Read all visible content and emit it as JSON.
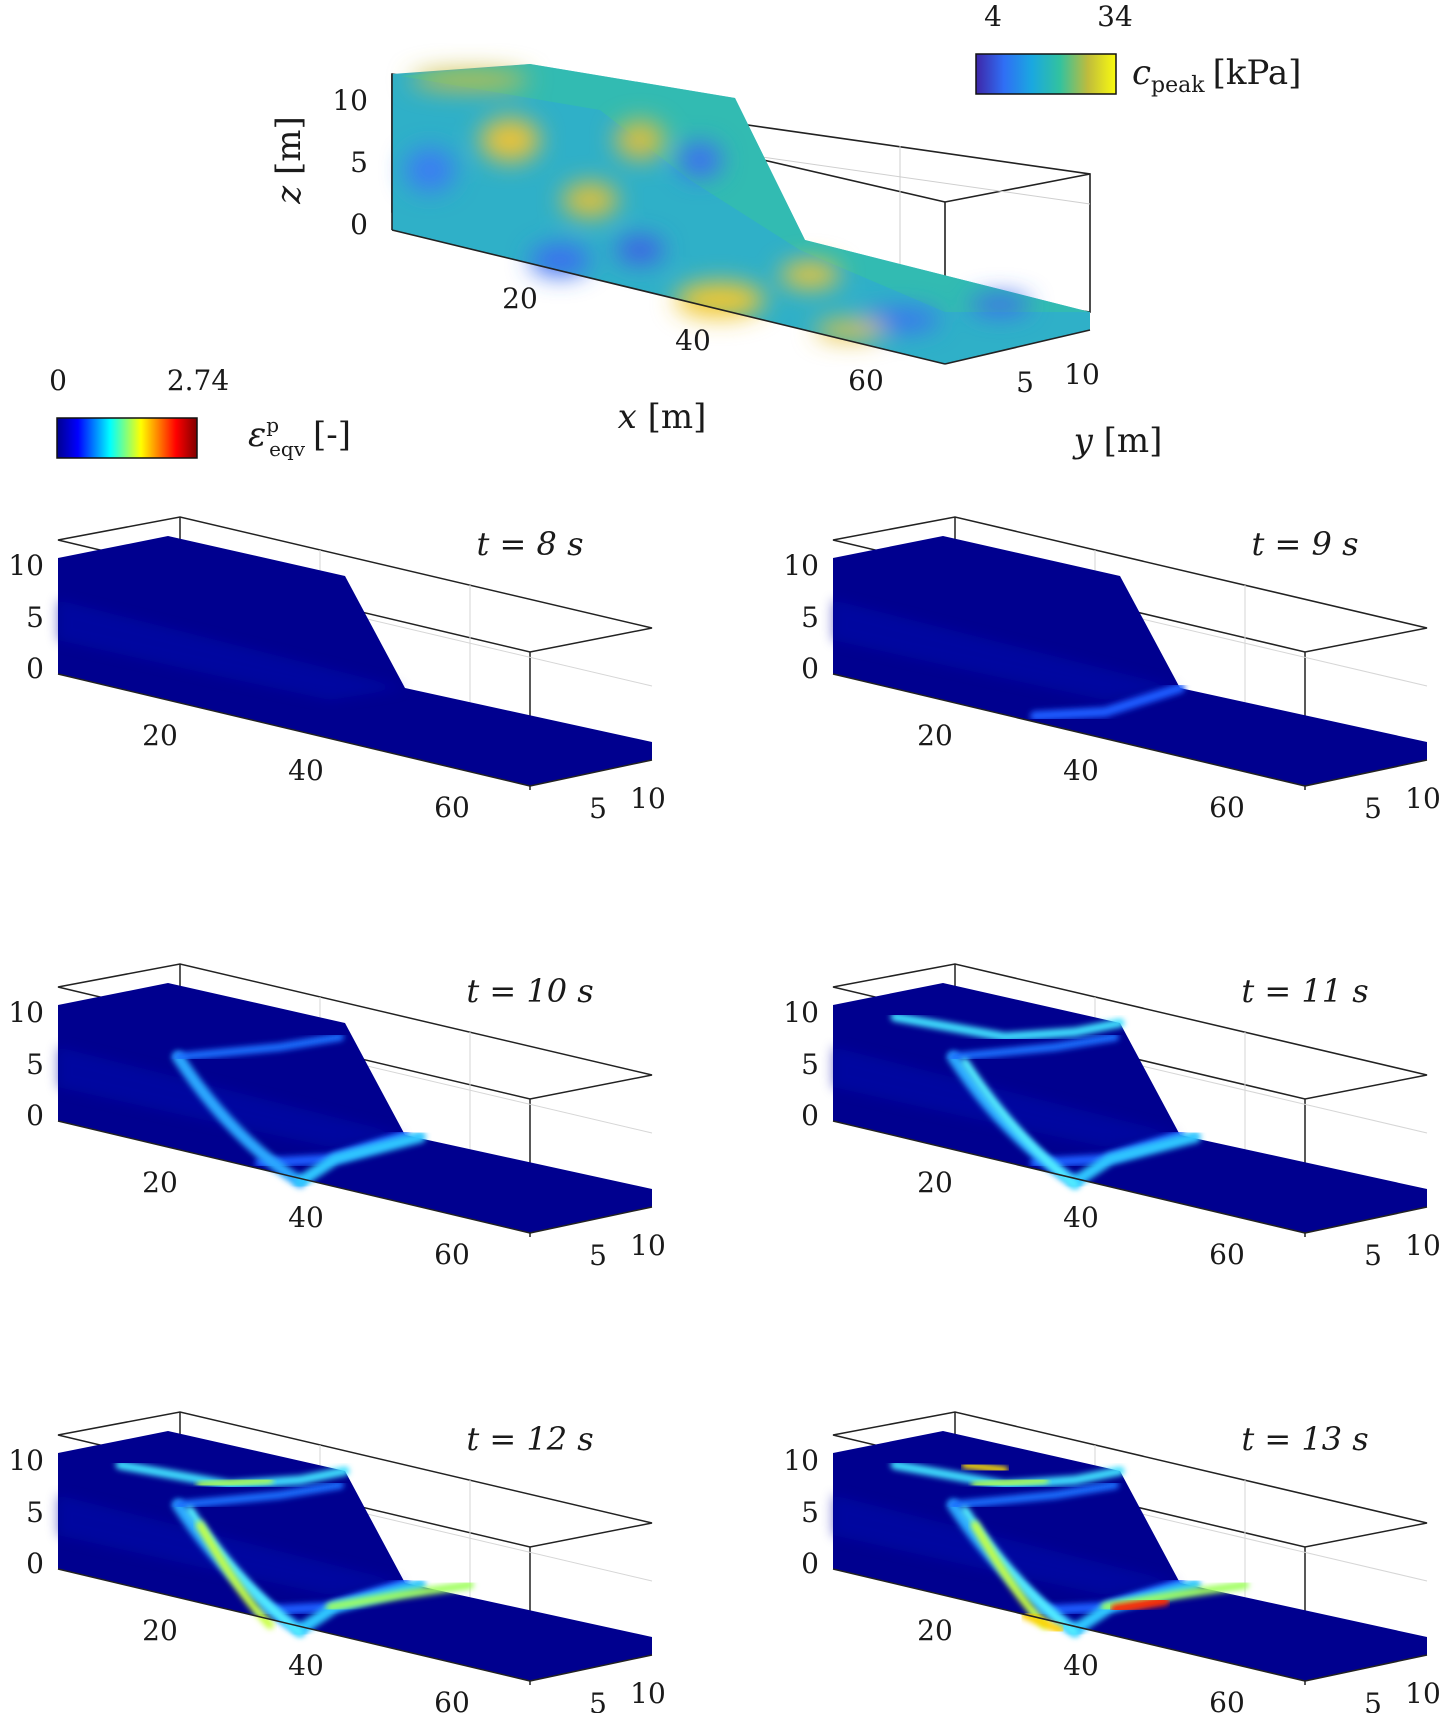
{
  "top_panel": {
    "colorbar": {
      "min": "4",
      "max": "34",
      "label_symbol": "c",
      "label_sub": "peak",
      "label_unit": "[kPa]"
    },
    "axes": {
      "z_label": "z",
      "z_unit": "[m]",
      "x_label": "x",
      "x_unit": "[m]",
      "y_label": "y",
      "y_unit": "[m]",
      "z_ticks": [
        "10",
        "5",
        "0"
      ],
      "x_ticks": [
        "20",
        "40",
        "60"
      ],
      "y_ticks": [
        "5",
        "10"
      ]
    }
  },
  "strain_colorbar": {
    "min": "0",
    "max": "2.74",
    "label_symbol": "ε",
    "label_sup": "p",
    "label_sub": "eqv",
    "label_unit": "[-]"
  },
  "panels": [
    {
      "title": "t = 8 s",
      "time": 8,
      "z_ticks": [
        "10",
        "5",
        "0"
      ],
      "x_ticks": [
        "20",
        "40",
        "60"
      ],
      "y_ticks": [
        "5",
        "10"
      ]
    },
    {
      "title": "t = 9 s",
      "time": 9,
      "z_ticks": [
        "10",
        "5",
        "0"
      ],
      "x_ticks": [
        "20",
        "40",
        "60"
      ],
      "y_ticks": [
        "5",
        "10"
      ]
    },
    {
      "title": "t = 10 s",
      "time": 10,
      "z_ticks": [
        "10",
        "5",
        "0"
      ],
      "x_ticks": [
        "20",
        "40",
        "60"
      ],
      "y_ticks": [
        "5",
        "10"
      ]
    },
    {
      "title": "t = 11 s",
      "time": 11,
      "z_ticks": [
        "10",
        "5",
        "0"
      ],
      "x_ticks": [
        "20",
        "40",
        "60"
      ],
      "y_ticks": [
        "5",
        "10"
      ]
    },
    {
      "title": "t = 12 s",
      "time": 12,
      "z_ticks": [
        "10",
        "5",
        "0"
      ],
      "x_ticks": [
        "20",
        "40",
        "60"
      ],
      "y_ticks": [
        "5",
        "10"
      ]
    },
    {
      "title": "t = 13 s",
      "time": 13,
      "z_ticks": [
        "10",
        "5",
        "0"
      ],
      "x_ticks": [
        "20",
        "40",
        "60"
      ],
      "y_ticks": [
        "5",
        "10"
      ]
    }
  ],
  "colors": {
    "parula_low": "#3b3fcf",
    "parula_mid": "#1fb0b8",
    "parula_high": "#f5e42a",
    "jet_low": "#00008f",
    "jet_mid": "#10e0ff",
    "jet_high": "#800000"
  }
}
